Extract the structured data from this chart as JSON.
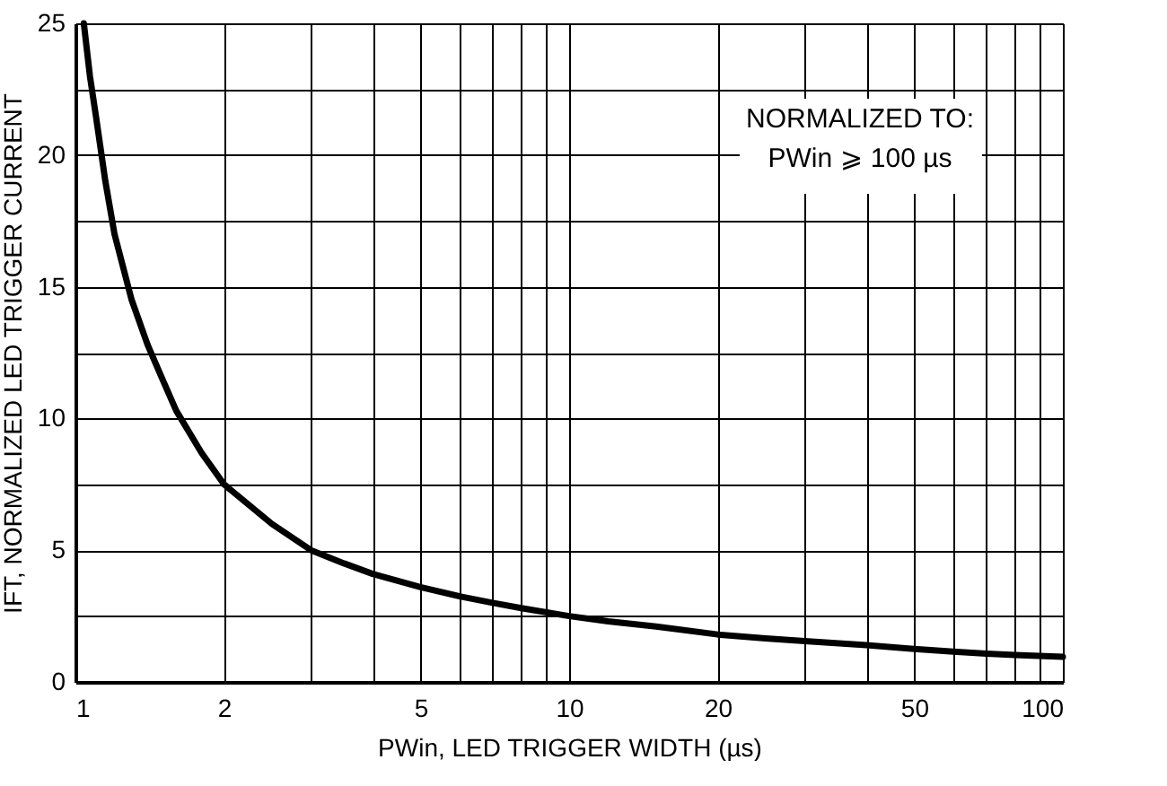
{
  "chart_data": {
    "type": "line",
    "xlabel": "PWin, LED TRIGGER WIDTH (µs)",
    "ylabel": "IFT, NORMALIZED LED TRIGGER CURRENT",
    "log": "x",
    "grid": true,
    "marker": "none",
    "line_style": "solid",
    "xlim": [
      1,
      100
    ],
    "ylim": [
      0,
      25
    ],
    "xticks": [
      1,
      2,
      {
        "value": 3,
        "label": null
      },
      {
        "value": 4,
        "label": null
      },
      5,
      {
        "value": 6,
        "label": null
      },
      {
        "value": 7,
        "label": null
      },
      {
        "value": 8,
        "label": null
      },
      {
        "value": 9,
        "label": null
      },
      10,
      20,
      {
        "value": 30,
        "label": null
      },
      {
        "value": 40,
        "label": null
      },
      50,
      {
        "value": 60,
        "label": null
      },
      {
        "value": 70,
        "label": null
      },
      {
        "value": 80,
        "label": null
      },
      {
        "value": 90,
        "label": null
      },
      100
    ],
    "yticks": [
      0,
      {
        "value": 2.5,
        "label": null
      },
      5,
      {
        "value": 7.5,
        "label": null
      },
      10,
      {
        "value": 12.5,
        "label": null
      },
      15,
      {
        "value": 17.5,
        "label": null
      },
      20,
      {
        "value": 22.5,
        "label": null
      },
      25
    ],
    "annotations": [
      "NORMALIZED TO:\nPWin ⩾ 100 µs"
    ],
    "series": [
      {
        "color": "#000000",
        "x": [
          1.04,
          1.07,
          1.1,
          1.15,
          1.2,
          1.3,
          1.4,
          1.5,
          1.6,
          1.8,
          2,
          2.5,
          3,
          3.5,
          4,
          5,
          6,
          7,
          8,
          10,
          12,
          15,
          20,
          25,
          30,
          40,
          50,
          60,
          70,
          80,
          100
        ],
        "values": [
          25,
          23,
          21.5,
          19,
          17,
          14.5,
          12.8,
          11.5,
          10.3,
          8.7,
          7.5,
          6,
          5,
          4.5,
          4.1,
          3.6,
          3.25,
          3,
          2.8,
          2.5,
          2.3,
          2.1,
          1.8,
          1.65,
          1.55,
          1.4,
          1.25,
          1.15,
          1.07,
          1.02,
          0.95
        ]
      }
    ]
  }
}
